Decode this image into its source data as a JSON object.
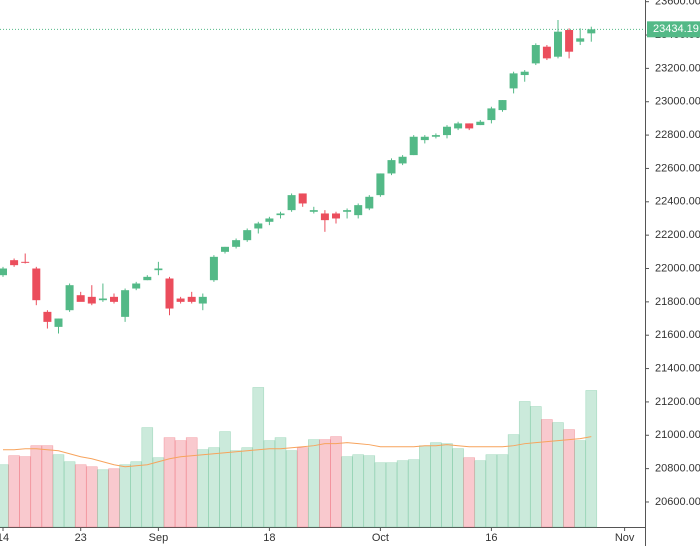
{
  "chart_data": {
    "type": "candlestick",
    "categories": [
      "14",
      null,
      null,
      null,
      null,
      null,
      null,
      "23",
      null,
      null,
      null,
      null,
      null,
      null,
      "Sep",
      null,
      null,
      null,
      null,
      null,
      null,
      null,
      null,
      null,
      "18",
      null,
      null,
      null,
      null,
      null,
      null,
      null,
      null,
      null,
      "Oct",
      null,
      null,
      null,
      null,
      null,
      null,
      null,
      null,
      null,
      "16",
      null,
      null,
      null,
      null,
      null,
      null,
      null,
      null,
      null,
      null,
      null,
      "Nov"
    ],
    "open": [
      21960,
      22050,
      22040,
      22000,
      21740,
      21650,
      21750,
      21840,
      21830,
      21810,
      21830,
      21710,
      21880,
      21930,
      21990,
      21940,
      21820,
      21830,
      21790,
      21930,
      22100,
      22130,
      22170,
      22240,
      22280,
      22320,
      22350,
      22450,
      22340,
      22330,
      22330,
      22340,
      22320,
      22360,
      22440,
      22570,
      22630,
      22680,
      22770,
      22790,
      22800,
      22840,
      22870,
      22860,
      22890,
      22950,
      23080,
      23160,
      23230,
      23330,
      23270,
      23430,
      23360,
      23410,
      null,
      null,
      null
    ],
    "high": [
      22010,
      22060,
      22090,
      22010,
      21750,
      21700,
      21910,
      21860,
      21900,
      21910,
      21850,
      21880,
      21920,
      21960,
      22040,
      21950,
      21830,
      21860,
      21850,
      22080,
      22130,
      22180,
      22240,
      22280,
      22310,
      22340,
      22450,
      22450,
      22370,
      22350,
      22340,
      22360,
      22390,
      22440,
      22570,
      22660,
      22680,
      22800,
      22800,
      22810,
      22860,
      22880,
      22870,
      22890,
      22970,
      23010,
      23180,
      23190,
      23350,
      23340,
      23490,
      23440,
      23440,
      23450,
      null,
      null,
      null
    ],
    "low": [
      21950,
      22010,
      22030,
      21780,
      21640,
      21610,
      21740,
      21810,
      21780,
      21800,
      21790,
      21680,
      21870,
      21930,
      21960,
      21720,
      21790,
      21790,
      21750,
      21920,
      22090,
      22120,
      22160,
      22210,
      22260,
      22300,
      22340,
      22370,
      22330,
      22220,
      22270,
      22300,
      22300,
      22350,
      22430,
      22560,
      22620,
      22680,
      22750,
      22780,
      22780,
      22830,
      22830,
      22860,
      22870,
      22940,
      23050,
      23120,
      23220,
      23250,
      23260,
      23260,
      23340,
      23360,
      null,
      null,
      null
    ],
    "close": [
      22000,
      22020,
      22035,
      21810,
      21680,
      21700,
      21900,
      21800,
      21790,
      21820,
      21800,
      21870,
      21910,
      21950,
      22000,
      21760,
      21800,
      21800,
      21830,
      22070,
      22130,
      22170,
      22230,
      22270,
      22300,
      22330,
      22440,
      22390,
      22350,
      22290,
      22300,
      22350,
      22380,
      22430,
      22570,
      22650,
      22670,
      22790,
      22790,
      22800,
      22850,
      22870,
      22840,
      22880,
      22960,
      23010,
      23170,
      23180,
      23340,
      23260,
      23420,
      23300,
      23380,
      23434.19,
      null,
      null,
      null
    ],
    "volume": [
      62,
      71,
      70,
      81,
      81,
      72,
      65,
      62,
      60,
      57,
      58,
      62,
      65,
      99,
      69,
      89,
      86,
      89,
      77,
      79,
      95,
      76,
      79,
      139,
      86,
      89,
      76,
      79,
      87,
      87,
      90,
      70,
      72,
      71,
      64,
      64,
      66,
      67,
      81,
      84,
      83,
      78,
      69,
      66,
      72,
      72,
      92,
      125,
      120,
      107,
      104,
      97,
      86,
      136,
      null,
      null,
      null
    ],
    "volume_ma": [
      77,
      77,
      78,
      78,
      77,
      76,
      73,
      70,
      68,
      65,
      62,
      60,
      61,
      62,
      65,
      68,
      70,
      71,
      72,
      73,
      74,
      75,
      76,
      77,
      78,
      78,
      79,
      80,
      81,
      83,
      83,
      84,
      83,
      82,
      80,
      80,
      80,
      80,
      81,
      81,
      82,
      81,
      80,
      80,
      80,
      80,
      81,
      83,
      84,
      85,
      86,
      87,
      88,
      90,
      null,
      null,
      null
    ],
    "vlim": [
      0,
      525
    ],
    "ylim": [
      20450,
      23610
    ],
    "yticks": [
      {
        "value": 20600,
        "label": "20600.00"
      },
      {
        "value": 20800,
        "label": "20800.00"
      },
      {
        "value": 21000,
        "label": "21000.00"
      },
      {
        "value": 21200,
        "label": "21200.00"
      },
      {
        "value": 21400,
        "label": "21400.00"
      },
      {
        "value": 21600,
        "label": "21600.00"
      },
      {
        "value": 21800,
        "label": "21800.00"
      },
      {
        "value": 22000,
        "label": "22000.00"
      },
      {
        "value": 22200,
        "label": "22200.00"
      },
      {
        "value": 22400,
        "label": "22400.00"
      },
      {
        "value": 22600,
        "label": "22600.00"
      },
      {
        "value": 22800,
        "label": "22800.00"
      },
      {
        "value": 23000,
        "label": "23000.00"
      },
      {
        "value": 23200,
        "label": "23200.00"
      },
      {
        "value": 23400,
        "label": "23400.00"
      },
      {
        "value": 23600,
        "label": "23600.00"
      }
    ],
    "up_color": "#53b987",
    "down_color": "#eb4d5c",
    "ma_color": "#f7a35c",
    "grid": false
  }
}
